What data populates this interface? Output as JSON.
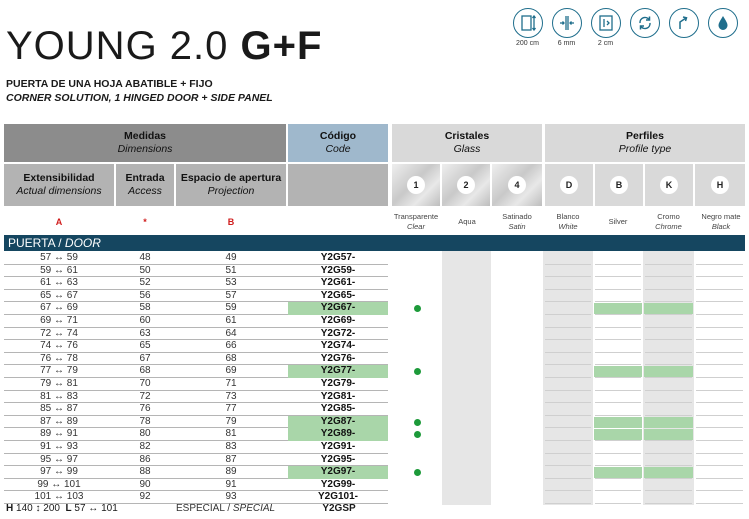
{
  "title": {
    "main": "YOUNG 2.0 ",
    "bold": "G+F"
  },
  "subtitle_es": "PUERTA DE UNA HOJA ABATIBLE + FIJO",
  "subtitle_en": "CORNER SOLUTION, 1 HINGED DOOR + SIDE PANEL",
  "feature_icons": [
    {
      "icon": "height-icon",
      "label": "200 cm"
    },
    {
      "icon": "glass-thickness-icon",
      "label": "6 mm"
    },
    {
      "icon": "adjustment-icon",
      "label": "2 cm"
    },
    {
      "icon": "reversible-icon",
      "label": ""
    },
    {
      "icon": "hinged-door-icon",
      "label": ""
    },
    {
      "icon": "water-drop-icon",
      "label": ""
    }
  ],
  "headers": {
    "medidas": {
      "es": "Medidas",
      "en": "Dimensions"
    },
    "codigo": {
      "es": "Código",
      "en": "Code"
    },
    "cristales": {
      "es": "Cristales",
      "en": "Glass"
    },
    "perfiles": {
      "es": "Perfiles",
      "en": "Profile type"
    },
    "extensibilidad": {
      "es": "Extensibilidad",
      "en": "Actual dimensions"
    },
    "entrada": {
      "es": "Entrada",
      "en": "Access"
    },
    "espacio": {
      "es": "Espacio de apertura",
      "en": "Projection"
    }
  },
  "column_keys": {
    "a": "A",
    "star": "*",
    "b": "B"
  },
  "glass": [
    {
      "num": "1",
      "es": "Transparente",
      "en": "Clear"
    },
    {
      "num": "2",
      "es": "Aqua",
      "en": ""
    },
    {
      "num": "4",
      "es": "Satinado",
      "en": "Satin"
    }
  ],
  "profiles": [
    {
      "letter": "D",
      "es": "Blanco",
      "en": "White"
    },
    {
      "letter": "B",
      "es": "Silver",
      "en": ""
    },
    {
      "letter": "K",
      "es": "Cromo",
      "en": "Chrome"
    },
    {
      "letter": "H",
      "es": "Negro mate",
      "en": "Black"
    }
  ],
  "section": {
    "es": "PUERTA / ",
    "en": "DOOR"
  },
  "rows": [
    {
      "a": "57 ↔ 59",
      "access": "48",
      "b": "49",
      "code": "Y2G57-",
      "hl": false
    },
    {
      "a": "59 ↔ 61",
      "access": "50",
      "b": "51",
      "code": "Y2G59-",
      "hl": false
    },
    {
      "a": "61 ↔ 63",
      "access": "52",
      "b": "53",
      "code": "Y2G61-",
      "hl": false
    },
    {
      "a": "65 ↔ 67",
      "access": "56",
      "b": "57",
      "code": "Y2G65-",
      "hl": false
    },
    {
      "a": "67 ↔ 69",
      "access": "58",
      "b": "59",
      "code": "Y2G67-",
      "hl": true
    },
    {
      "a": "69 ↔ 71",
      "access": "60",
      "b": "61",
      "code": "Y2G69-",
      "hl": false
    },
    {
      "a": "72 ↔ 74",
      "access": "63",
      "b": "64",
      "code": "Y2G72-",
      "hl": false
    },
    {
      "a": "74 ↔ 76",
      "access": "65",
      "b": "66",
      "code": "Y2G74-",
      "hl": false
    },
    {
      "a": "76 ↔ 78",
      "access": "67",
      "b": "68",
      "code": "Y2G76-",
      "hl": false
    },
    {
      "a": "77 ↔ 79",
      "access": "68",
      "b": "69",
      "code": "Y2G77-",
      "hl": true
    },
    {
      "a": "79 ↔ 81",
      "access": "70",
      "b": "71",
      "code": "Y2G79-",
      "hl": false
    },
    {
      "a": "81 ↔ 83",
      "access": "72",
      "b": "73",
      "code": "Y2G81-",
      "hl": false
    },
    {
      "a": "85 ↔ 87",
      "access": "76",
      "b": "77",
      "code": "Y2G85-",
      "hl": false
    },
    {
      "a": "87 ↔ 89",
      "access": "78",
      "b": "79",
      "code": "Y2G87-",
      "hl": true
    },
    {
      "a": "89 ↔ 91",
      "access": "80",
      "b": "81",
      "code": "Y2G89-",
      "hl": true
    },
    {
      "a": "91 ↔ 93",
      "access": "82",
      "b": "83",
      "code": "Y2G91-",
      "hl": false
    },
    {
      "a": "95 ↔ 97",
      "access": "86",
      "b": "87",
      "code": "Y2G95-",
      "hl": false
    },
    {
      "a": "97 ↔ 99",
      "access": "88",
      "b": "89",
      "code": "Y2G97-",
      "hl": true
    },
    {
      "a": "99 ↔ 101",
      "access": "90",
      "b": "91",
      "code": "Y2G99-",
      "hl": false
    },
    {
      "a": "101 ↔ 103",
      "access": "92",
      "b": "93",
      "code": "Y2G101-",
      "hl": false
    }
  ],
  "footer": {
    "h_label": "H",
    "h_value": "140 ↕ 200",
    "l_label": "L",
    "l_value": "57 ↔ 101"
  },
  "special": {
    "es": "ESPECIAL / ",
    "en": "SPECIAL",
    "code": "Y2GSP"
  },
  "colors": {
    "section_bar": "#154660",
    "highlight": "#a9d6a9",
    "dot": "#1d9a3a",
    "accent_icon": "#1f6e8c"
  }
}
